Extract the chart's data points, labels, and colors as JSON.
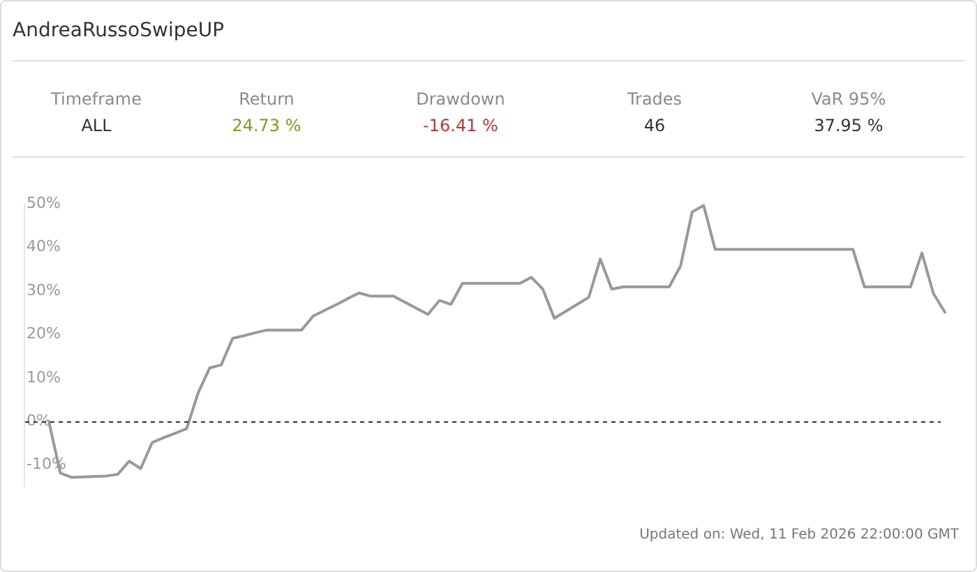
{
  "chart_data": [
    {
      "type": "other",
      "title": "AndreaRussoSwipeUP",
      "annotations": [
        "Timeframe",
        "ALL",
        "Return",
        "24.73 %",
        "Drawdown",
        "-16.41 %",
        "Trades",
        "46",
        "VaR 95%",
        "37.95 %"
      ],
      "colors": [
        "#8a8a8a",
        "#333333",
        "#8a8a8a",
        "#7a9e1f",
        "#8a8a8a",
        "#b03a3a",
        "#8a8a8a",
        "#333333",
        "#8a8a8a",
        "#333333"
      ]
    },
    {
      "type": "line",
      "categories": [
        null,
        null,
        null,
        null,
        null,
        null,
        null,
        null,
        null,
        null,
        null,
        null,
        null,
        null,
        null,
        null,
        null,
        null,
        null,
        null,
        null,
        null,
        null,
        null,
        null,
        null,
        null,
        null,
        null,
        null,
        null,
        null,
        null,
        null,
        null,
        null,
        null,
        null,
        null,
        null,
        null,
        null,
        null,
        null,
        null,
        null,
        null,
        null,
        null,
        null,
        null,
        null,
        null,
        null,
        null,
        null,
        null,
        null,
        null,
        null,
        null,
        null,
        null,
        null,
        null,
        null,
        null,
        null,
        null,
        null,
        null,
        null,
        null,
        null,
        null,
        null,
        null,
        null,
        null
      ],
      "values": [
        0,
        -11.8,
        -12.8,
        -12.7,
        -12.6,
        -12.5,
        -12.1,
        -9.1,
        -10.8,
        -4.8,
        -3.7,
        -2.7,
        -1.6,
        6.6,
        12.3,
        13.0,
        19.1,
        19.7,
        20.4,
        21.0,
        21.0,
        21.0,
        21.0,
        24.2,
        25.5,
        26.8,
        28.2,
        29.5,
        28.8,
        28.8,
        28.8,
        27.4,
        26.0,
        24.6,
        27.8,
        26.9,
        31.7,
        31.7,
        31.7,
        31.7,
        31.7,
        31.7,
        33.1,
        30.4,
        23.7,
        25.3,
        26.9,
        28.5,
        37.3,
        30.4,
        30.9,
        30.9,
        30.9,
        30.9,
        30.9,
        35.8,
        48.1,
        49.6,
        39.5,
        39.5,
        39.5,
        39.5,
        39.5,
        39.5,
        39.5,
        39.5,
        39.5,
        39.5,
        39.5,
        39.5,
        39.5,
        30.9,
        30.9,
        30.9,
        30.9,
        30.9,
        38.7,
        29.4,
        25.1
      ],
      "color": "#999999",
      "marker": "none",
      "line_style": "solid",
      "legend": false,
      "grid": false,
      "tick_labels": "y",
      "ylim": [
        -15,
        50
      ],
      "yticks": [
        {
          "value": -10,
          "label": "-10%"
        },
        {
          "value": 0,
          "label": "0%"
        },
        {
          "value": 10,
          "label": "10%"
        },
        {
          "value": 20,
          "label": "20%"
        },
        {
          "value": 30,
          "label": "30%"
        },
        {
          "value": 40,
          "label": "40%"
        },
        {
          "value": 50,
          "label": "50%"
        }
      ],
      "ref_lines": [
        {
          "axis": "y",
          "value": 0,
          "color": "#333333",
          "line_style": "dashed"
        }
      ],
      "annotations": [
        "Updated on: Wed, 11 Feb 2026 22:00:00 GMT"
      ]
    }
  ]
}
